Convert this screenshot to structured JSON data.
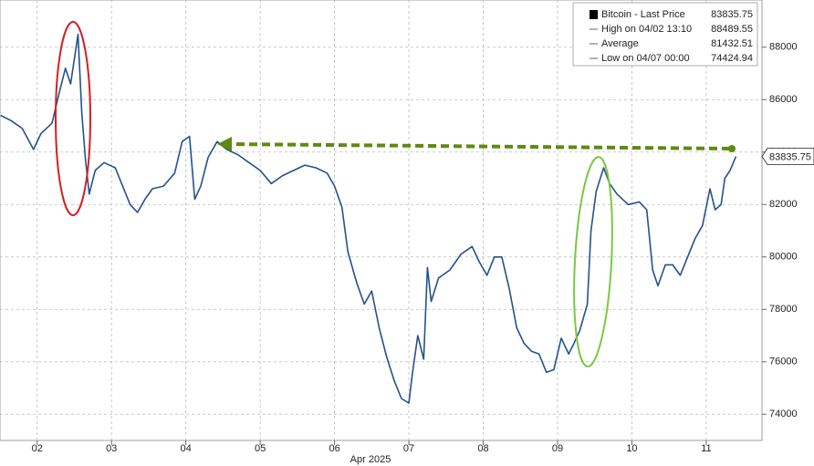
{
  "chart_data": {
    "type": "line",
    "x_label": "Apr 2025",
    "series": [
      {
        "name": "Bitcoin - Last Price",
        "color": "#23528c",
        "x": [
          1.51,
          1.65,
          1.8,
          1.95,
          2.05,
          2.2,
          2.3,
          2.38,
          2.45,
          2.549,
          2.6,
          2.65,
          2.7,
          2.78,
          2.9,
          3.05,
          3.15,
          3.25,
          3.35,
          3.45,
          3.55,
          3.7,
          3.85,
          3.95,
          4.05,
          4.12,
          4.2,
          4.3,
          4.42,
          4.55,
          4.7,
          4.85,
          5.0,
          5.15,
          5.3,
          5.45,
          5.6,
          5.75,
          5.9,
          6.0,
          6.1,
          6.18,
          6.3,
          6.4,
          6.5,
          6.6,
          6.7,
          6.8,
          6.9,
          7.0,
          7.05,
          7.12,
          7.2,
          7.25,
          7.3,
          7.4,
          7.55,
          7.7,
          7.85,
          7.95,
          8.05,
          8.15,
          8.25,
          8.35,
          8.45,
          8.55,
          8.65,
          8.75,
          8.85,
          8.95,
          9.05,
          9.15,
          9.22,
          9.3,
          9.4,
          9.45,
          9.52,
          9.62,
          9.7,
          9.8,
          9.95,
          10.1,
          10.2,
          10.28,
          10.35,
          10.45,
          10.55,
          10.65,
          10.75,
          10.85,
          10.95,
          11.05,
          11.12,
          11.2,
          11.25,
          11.32,
          11.4
        ],
        "values": [
          85400,
          85200,
          84900,
          84100,
          84700,
          85100,
          86300,
          87200,
          86600,
          88489.55,
          85500,
          83700,
          82400,
          83300,
          83600,
          83400,
          82700,
          82000,
          81700,
          82200,
          82600,
          82700,
          83200,
          84400,
          84600,
          82200,
          82700,
          83800,
          84400,
          84100,
          83900,
          83600,
          83300,
          82800,
          83100,
          83300,
          83500,
          83400,
          83200,
          82700,
          81900,
          80200,
          79000,
          78200,
          78700,
          77300,
          76200,
          75300,
          74600,
          74424.94,
          75600,
          77000,
          76100,
          79600,
          78300,
          79200,
          79500,
          80100,
          80400,
          79800,
          79300,
          80000,
          80000,
          78800,
          77300,
          76700,
          76400,
          76300,
          75600,
          75700,
          76900,
          76300,
          76700,
          77200,
          78200,
          81000,
          82500,
          83400,
          82800,
          82400,
          82000,
          82100,
          81800,
          79500,
          78900,
          79700,
          79700,
          79300,
          80000,
          80700,
          81200,
          82600,
          81800,
          82000,
          83000,
          83300,
          83835.75
        ]
      }
    ],
    "legend": [
      {
        "label": "Bitcoin - Last Price",
        "value": 83835.75
      },
      {
        "label": "High on 04/02 13:10",
        "value": 88489.55
      },
      {
        "label": "Average",
        "value": 81432.51
      },
      {
        "label": "Low on 04/07 00:00",
        "value": 74424.94
      }
    ],
    "xlim": [
      1.5,
      11.75
    ],
    "xticks": [
      {
        "value": 2,
        "label": "02"
      },
      {
        "value": 3,
        "label": "03"
      },
      {
        "value": 4,
        "label": "04"
      },
      {
        "value": 5,
        "label": "05"
      },
      {
        "value": 6,
        "label": "06"
      },
      {
        "value": 7,
        "label": "07"
      },
      {
        "value": 8,
        "label": "08"
      },
      {
        "value": 9,
        "label": "09"
      },
      10,
      11
    ],
    "ylim": [
      73000,
      89800
    ],
    "yticks": [
      74000,
      76000,
      78000,
      80000,
      82000,
      84000,
      86000,
      88000
    ],
    "grid": true
  }
}
